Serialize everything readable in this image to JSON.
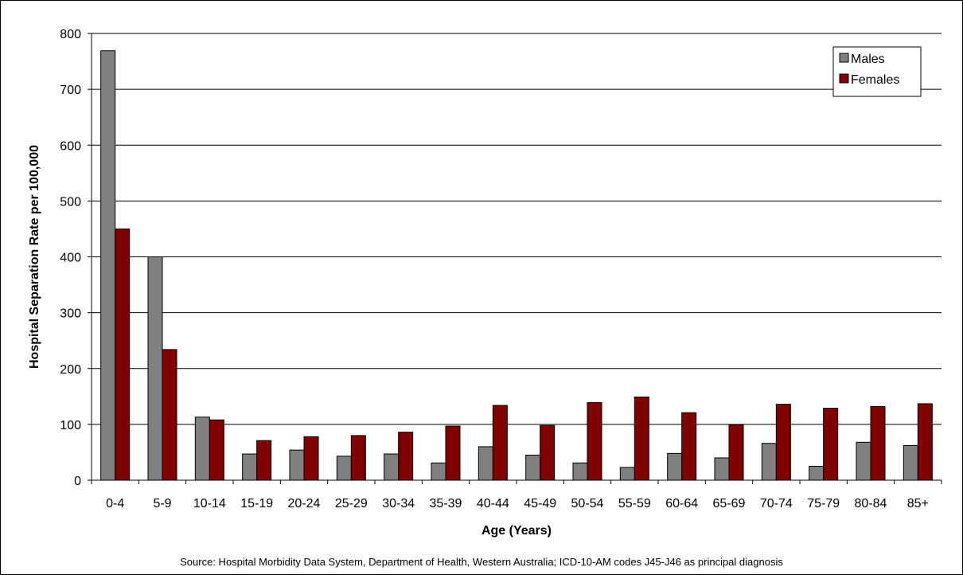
{
  "chart_data": {
    "type": "bar",
    "categories": [
      "0-4",
      "5-9",
      "10-14",
      "15-19",
      "20-24",
      "25-29",
      "30-34",
      "35-39",
      "40-44",
      "45-49",
      "50-54",
      "55-59",
      "60-64",
      "65-69",
      "70-74",
      "75-79",
      "80-84",
      "85+"
    ],
    "series": [
      {
        "name": "Males",
        "color": "#808080",
        "values": [
          769,
          400,
          113,
          47,
          54,
          43,
          47,
          31,
          60,
          45,
          31,
          23,
          48,
          40,
          66,
          25,
          68,
          62
        ]
      },
      {
        "name": "Females",
        "color": "#800000",
        "values": [
          450,
          234,
          108,
          71,
          78,
          80,
          86,
          97,
          134,
          98,
          139,
          149,
          121,
          99,
          136,
          129,
          132,
          137
        ]
      }
    ],
    "xlabel": "Age (Years)",
    "ylabel": "Hospital Separation Rate per 100,000",
    "ylim": [
      0,
      800
    ],
    "yticks": [
      0,
      100,
      200,
      300,
      400,
      500,
      600,
      700,
      800
    ],
    "grid": true,
    "legend_position": "top-right"
  },
  "source_note": "Source: Hospital Morbidity Data System, Department of Health, Western Australia; ICD-10-AM codes J45-J46 as principal diagnosis"
}
